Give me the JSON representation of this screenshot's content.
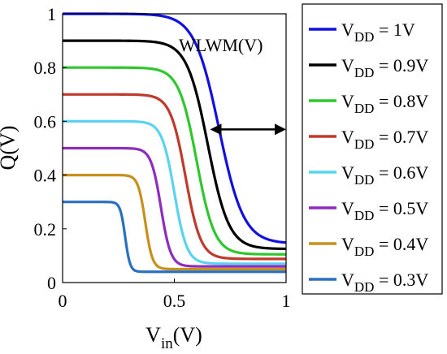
{
  "chart_data": {
    "type": "line",
    "ylabel": "Q(V)",
    "xlabel_main": "V",
    "xlabel_sub": "in",
    "xlabel_tail": "(V)",
    "xlim": [
      0,
      1
    ],
    "ylim": [
      0,
      1
    ],
    "x_ticks": [
      "0",
      "0.5",
      "1"
    ],
    "y_ticks": [
      "0",
      "0.2",
      "0.4",
      "0.6",
      "0.8",
      "1"
    ],
    "grid": false,
    "legend_position": "right-outside",
    "annotation": {
      "text": "WLWM(V)",
      "y": 0.57,
      "x_from": 0.66,
      "x_to": 1.0
    },
    "series": [
      {
        "name_main": "V",
        "name_sub": "DD",
        "name_tail": " = 1V",
        "color": "#1010e0",
        "vdd": 1.0,
        "high": 1.0,
        "low": 0.145,
        "vmid": 0.7,
        "k": 0.055
      },
      {
        "name_main": "V",
        "name_sub": "DD",
        "name_tail": " = 0.9V",
        "color": "#000000",
        "vdd": 0.9,
        "high": 0.9,
        "low": 0.125,
        "vmid": 0.65,
        "k": 0.047
      },
      {
        "name_main": "V",
        "name_sub": "DD",
        "name_tail": " = 0.8V",
        "color": "#2ec82e",
        "vdd": 0.8,
        "high": 0.8,
        "low": 0.105,
        "vmid": 0.6,
        "k": 0.04
      },
      {
        "name_main": "V",
        "name_sub": "DD",
        "name_tail": " = 0.7V",
        "color": "#c0392b",
        "vdd": 0.7,
        "high": 0.7,
        "low": 0.088,
        "vmid": 0.55,
        "k": 0.034
      },
      {
        "name_main": "V",
        "name_sub": "DD",
        "name_tail": " = 0.6V",
        "color": "#5bd3f0",
        "vdd": 0.6,
        "high": 0.6,
        "low": 0.07,
        "vmid": 0.5,
        "k": 0.028
      },
      {
        "name_main": "V",
        "name_sub": "DD",
        "name_tail": " = 0.5V",
        "color": "#8e2cc0",
        "vdd": 0.5,
        "high": 0.5,
        "low": 0.06,
        "vmid": 0.44,
        "k": 0.022
      },
      {
        "name_main": "V",
        "name_sub": "DD",
        "name_tail": " = 0.4V",
        "color": "#c8901a",
        "vdd": 0.4,
        "high": 0.4,
        "low": 0.05,
        "vmid": 0.37,
        "k": 0.016
      },
      {
        "name_main": "V",
        "name_sub": "DD",
        "name_tail": " = 0.3V",
        "color": "#2a6fc0",
        "vdd": 0.3,
        "high": 0.3,
        "low": 0.04,
        "vmid": 0.28,
        "k": 0.011
      }
    ]
  }
}
